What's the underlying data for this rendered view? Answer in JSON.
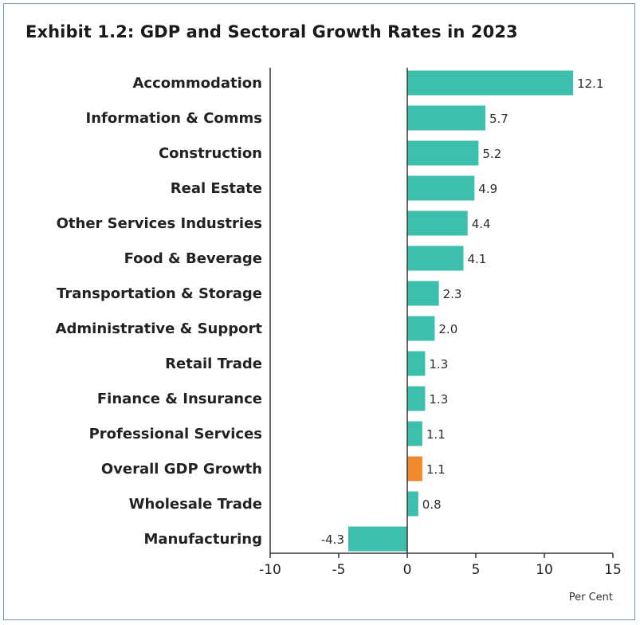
{
  "chart_data": {
    "type": "bar",
    "orientation": "horizontal",
    "title": "Exhibit 1.2: GDP and Sectoral Growth Rates in 2023",
    "xlabel": "Per Cent",
    "ylabel": "",
    "xlim": [
      -10,
      15
    ],
    "xticks": [
      "-10",
      "-5",
      "0",
      "5",
      "10",
      "15"
    ],
    "grid": false,
    "categories": [
      "Accommodation",
      "Information & Comms",
      "Construction",
      "Real Estate",
      "Other Services Industries",
      "Food & Beverage",
      "Transportation & Storage",
      "Administrative & Support",
      "Retail Trade",
      "Finance & Insurance",
      "Professional Services",
      "Overall GDP Growth",
      "Wholesale Trade",
      "Manufacturing"
    ],
    "values": [
      12.1,
      5.7,
      5.2,
      4.9,
      4.4,
      4.1,
      2.3,
      2.0,
      1.3,
      1.3,
      1.1,
      1.1,
      0.8,
      -4.3
    ],
    "value_labels": [
      "12.1",
      "5.7",
      "5.2",
      "4.9",
      "4.4",
      "4.1",
      "2.3",
      "2.0",
      "1.3",
      "1.3",
      "1.1",
      "1.1",
      "0.8",
      "-4.3"
    ],
    "colors": {
      "default": "#3dbfad",
      "highlight": "#ef8a2e",
      "highlight_category": "Overall GDP Growth",
      "frame_border": "#6f93c5",
      "axis": "#333333"
    }
  }
}
